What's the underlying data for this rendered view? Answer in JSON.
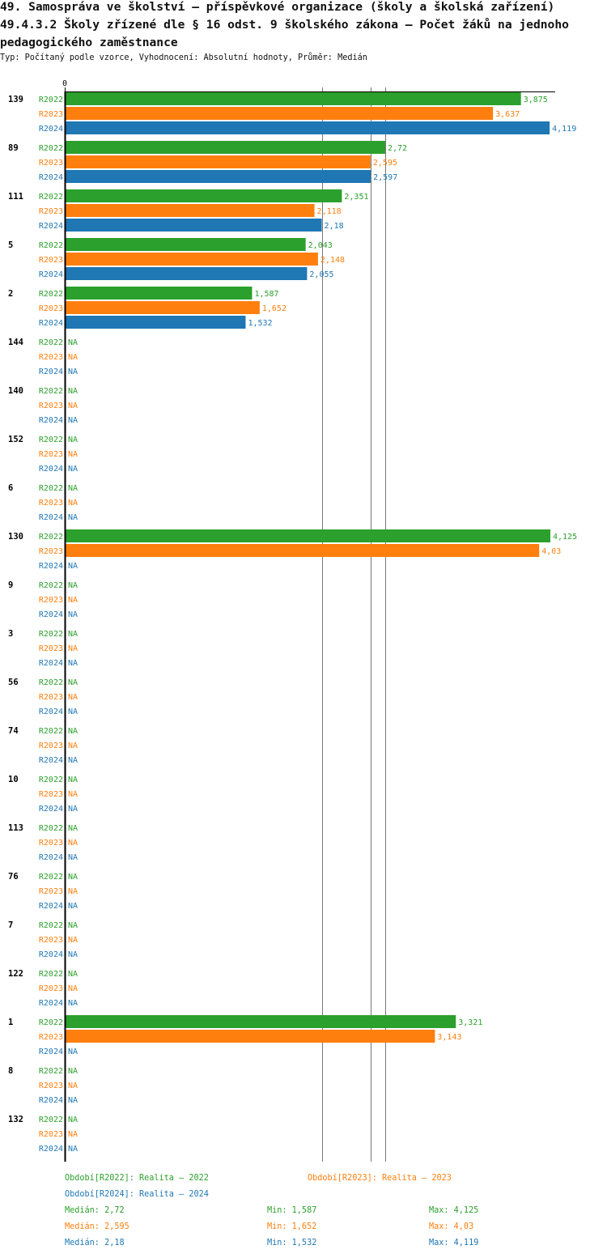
{
  "header": {
    "title_line1": "49. Samospráva ve školství – příspěvkové organizace (školy a školská zařízení)",
    "title_line2": "49.4.3.2 Školy zřízené dle § 16 odst. 9 školského zákona – Počet žáků na jednoho",
    "title_line3": "pedagogického zaměstnance",
    "subtitle": "Typ: Počítaný podle vzorce, Vyhodnocení: Absolutní hodnoty, Průměr: Medián"
  },
  "chart_data": {
    "type": "bar",
    "orientation": "horizontal",
    "xlim": [
      0,
      4.125
    ],
    "x_tick_labels": [
      "0"
    ],
    "grid": false,
    "na_label": "NA",
    "periods": [
      "R2022",
      "R2023",
      "R2024"
    ],
    "colors": {
      "R2022": "#2ca02c",
      "R2023": "#ff7f0e",
      "R2024": "#1f77b4"
    },
    "categories": [
      "139",
      "89",
      "111",
      "5",
      "2",
      "144",
      "140",
      "152",
      "6",
      "130",
      "9",
      "3",
      "56",
      "74",
      "10",
      "113",
      "76",
      "7",
      "122",
      "1",
      "8",
      "132"
    ],
    "series": [
      {
        "name": "R2022",
        "values": [
          3.875,
          2.72,
          2.351,
          2.043,
          1.587,
          null,
          null,
          null,
          null,
          4.125,
          null,
          null,
          null,
          null,
          null,
          null,
          null,
          null,
          null,
          3.321,
          null,
          null
        ]
      },
      {
        "name": "R2023",
        "values": [
          3.637,
          2.595,
          2.118,
          2.148,
          1.652,
          null,
          null,
          null,
          null,
          4.03,
          null,
          null,
          null,
          null,
          null,
          null,
          null,
          null,
          null,
          3.143,
          null,
          null
        ]
      },
      {
        "name": "R2024",
        "values": [
          4.119,
          2.597,
          2.18,
          2.055,
          1.532,
          null,
          null,
          null,
          null,
          null,
          null,
          null,
          null,
          null,
          null,
          null,
          null,
          null,
          null,
          null,
          null,
          null
        ]
      }
    ],
    "median_lines": {
      "R2022": 2.72,
      "R2023": 2.595,
      "R2024": 2.18
    },
    "legend": [
      {
        "label": "Období[R2022]: Realita – 2022",
        "color": "#2ca02c"
      },
      {
        "label": "Období[R2023]: Realita – 2023",
        "color": "#ff7f0e"
      },
      {
        "label": "Období[R2024]: Realita – 2024",
        "color": "#1f77b4"
      }
    ],
    "stats": [
      {
        "median": "Medián: 2,72",
        "min": "Min: 1,587",
        "max": "Max: 4,125",
        "color": "#2ca02c"
      },
      {
        "median": "Medián: 2,595",
        "min": "Min: 1,652",
        "max": "Max: 4,03",
        "color": "#ff7f0e"
      },
      {
        "median": "Medián: 2,18",
        "min": "Min: 1,532",
        "max": "Max: 4,119",
        "color": "#1f77b4"
      }
    ]
  }
}
